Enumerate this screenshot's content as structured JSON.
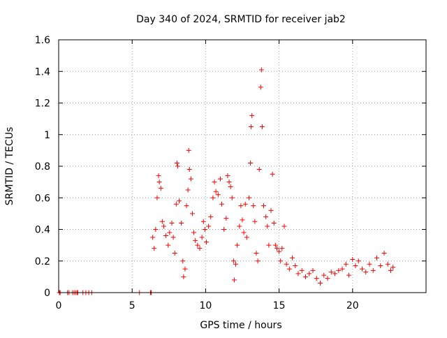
{
  "chart_data": {
    "type": "scatter",
    "title": "Day 340 of 2024, SRMTID for receiver jab2",
    "xlabel": "GPS time / hours",
    "ylabel": "SRMTID / TECUs",
    "xlim": [
      0,
      25
    ],
    "ylim": [
      0,
      1.6
    ],
    "xticks": [
      0,
      5,
      10,
      15,
      20
    ],
    "xtick_labels": [
      "0",
      "5",
      "10",
      "15",
      "20"
    ],
    "yticks": [
      0,
      0.2,
      0.4,
      0.6,
      0.8,
      1.0,
      1.2,
      1.4,
      1.6
    ],
    "ytick_labels": [
      "0",
      "0.2",
      "0.4",
      "0.6",
      "0.8",
      "1",
      "1.2",
      "1.4",
      "1.6"
    ],
    "grid": true,
    "marker": "+",
    "color": "#ff0000",
    "series": [
      {
        "name": "SRMTID",
        "points": [
          [
            0.05,
            0.0
          ],
          [
            0.1,
            0.0
          ],
          [
            0.6,
            0.0
          ],
          [
            0.7,
            0.0
          ],
          [
            0.95,
            0.0
          ],
          [
            1.05,
            0.0
          ],
          [
            1.15,
            0.0
          ],
          [
            1.25,
            0.0
          ],
          [
            1.3,
            0.0
          ],
          [
            1.65,
            0.0
          ],
          [
            1.85,
            0.0
          ],
          [
            2.05,
            0.0
          ],
          [
            2.25,
            0.0
          ],
          [
            5.5,
            0.0
          ],
          [
            6.25,
            0.0
          ],
          [
            6.3,
            0.0
          ],
          [
            6.4,
            0.35
          ],
          [
            6.5,
            0.28
          ],
          [
            6.6,
            0.4
          ],
          [
            6.7,
            0.6
          ],
          [
            6.8,
            0.74
          ],
          [
            6.85,
            0.7
          ],
          [
            6.95,
            0.66
          ],
          [
            7.05,
            0.45
          ],
          [
            7.15,
            0.42
          ],
          [
            7.3,
            0.36
          ],
          [
            7.45,
            0.3
          ],
          [
            7.55,
            0.38
          ],
          [
            7.7,
            0.44
          ],
          [
            7.8,
            0.35
          ],
          [
            7.9,
            0.25
          ],
          [
            8.0,
            0.56
          ],
          [
            8.05,
            0.82
          ],
          [
            8.1,
            0.8
          ],
          [
            8.2,
            0.58
          ],
          [
            8.35,
            0.44
          ],
          [
            8.45,
            0.2
          ],
          [
            8.5,
            0.1
          ],
          [
            8.6,
            0.15
          ],
          [
            8.7,
            0.55
          ],
          [
            8.8,
            0.65
          ],
          [
            8.85,
            0.9
          ],
          [
            8.9,
            0.78
          ],
          [
            9.0,
            0.72
          ],
          [
            9.1,
            0.5
          ],
          [
            9.2,
            0.38
          ],
          [
            9.3,
            0.33
          ],
          [
            9.45,
            0.3
          ],
          [
            9.6,
            0.28
          ],
          [
            9.75,
            0.35
          ],
          [
            9.85,
            0.45
          ],
          [
            9.95,
            0.4
          ],
          [
            10.05,
            0.32
          ],
          [
            10.2,
            0.42
          ],
          [
            10.35,
            0.48
          ],
          [
            10.5,
            0.6
          ],
          [
            10.6,
            0.7
          ],
          [
            10.7,
            0.64
          ],
          [
            10.85,
            0.62
          ],
          [
            11.0,
            0.72
          ],
          [
            11.1,
            0.56
          ],
          [
            11.25,
            0.4
          ],
          [
            11.4,
            0.47
          ],
          [
            11.5,
            0.74
          ],
          [
            11.6,
            0.7
          ],
          [
            11.7,
            0.67
          ],
          [
            11.8,
            0.6
          ],
          [
            11.9,
            0.2
          ],
          [
            11.95,
            0.08
          ],
          [
            12.05,
            0.18
          ],
          [
            12.15,
            0.3
          ],
          [
            12.3,
            0.42
          ],
          [
            12.4,
            0.55
          ],
          [
            12.5,
            0.46
          ],
          [
            12.6,
            0.38
          ],
          [
            12.7,
            0.56
          ],
          [
            12.8,
            0.35
          ],
          [
            12.95,
            0.6
          ],
          [
            13.05,
            0.82
          ],
          [
            13.1,
            1.05
          ],
          [
            13.15,
            1.12
          ],
          [
            13.25,
            0.55
          ],
          [
            13.35,
            0.45
          ],
          [
            13.45,
            0.25
          ],
          [
            13.55,
            0.2
          ],
          [
            13.65,
            0.78
          ],
          [
            13.75,
            1.3
          ],
          [
            13.8,
            1.41
          ],
          [
            13.85,
            1.05
          ],
          [
            13.95,
            0.55
          ],
          [
            14.1,
            0.48
          ],
          [
            14.2,
            0.42
          ],
          [
            14.3,
            0.3
          ],
          [
            14.45,
            0.52
          ],
          [
            14.55,
            0.75
          ],
          [
            14.65,
            0.44
          ],
          [
            14.75,
            0.3
          ],
          [
            14.85,
            0.28
          ],
          [
            15.0,
            0.26
          ],
          [
            15.1,
            0.2
          ],
          [
            15.2,
            0.28
          ],
          [
            15.35,
            0.42
          ],
          [
            15.5,
            0.18
          ],
          [
            15.7,
            0.15
          ],
          [
            15.9,
            0.22
          ],
          [
            16.1,
            0.17
          ],
          [
            16.3,
            0.12
          ],
          [
            16.55,
            0.14
          ],
          [
            16.8,
            0.1
          ],
          [
            17.05,
            0.12
          ],
          [
            17.3,
            0.14
          ],
          [
            17.55,
            0.09
          ],
          [
            17.8,
            0.06
          ],
          [
            18.05,
            0.11
          ],
          [
            18.3,
            0.09
          ],
          [
            18.55,
            0.13
          ],
          [
            18.8,
            0.12
          ],
          [
            19.05,
            0.14
          ],
          [
            19.3,
            0.15
          ],
          [
            19.55,
            0.18
          ],
          [
            19.75,
            0.11
          ],
          [
            20.0,
            0.21
          ],
          [
            20.2,
            0.17
          ],
          [
            20.4,
            0.2
          ],
          [
            20.65,
            0.15
          ],
          [
            20.9,
            0.13
          ],
          [
            21.15,
            0.18
          ],
          [
            21.4,
            0.14
          ],
          [
            21.65,
            0.22
          ],
          [
            21.9,
            0.17
          ],
          [
            22.15,
            0.25
          ],
          [
            22.4,
            0.18
          ],
          [
            22.6,
            0.14
          ],
          [
            22.75,
            0.16
          ]
        ]
      }
    ]
  }
}
